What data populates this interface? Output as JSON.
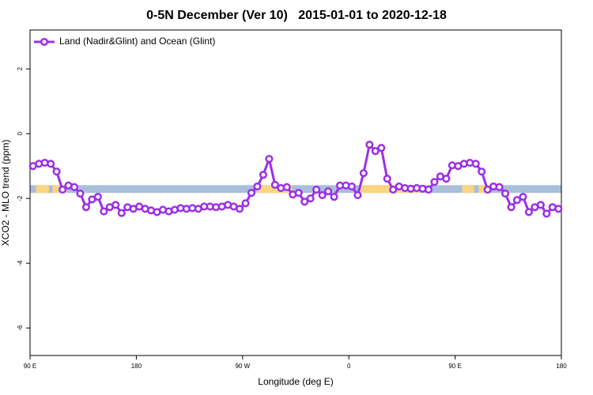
{
  "chart_data": {
    "type": "line",
    "title": "0-5N December (Ver 10)   2015-01-01 to 2020-12-18",
    "xlabel": "Longitude (deg E)",
    "ylabel": "XCO2 - MLO trend (ppm)",
    "xlim": [
      90,
      540
    ],
    "ylim": [
      -6.85,
      3.2
    ],
    "xticks": [
      {
        "value": 90,
        "label": "90 E"
      },
      {
        "value": 180,
        "label": "180"
      },
      {
        "value": 270,
        "label": "90 W"
      },
      {
        "value": 360,
        "label": "0"
      },
      {
        "value": 450,
        "label": "90 E"
      },
      {
        "value": 540,
        "label": "180"
      }
    ],
    "yticks": [
      2,
      0,
      -2,
      -4,
      -6
    ],
    "legend": "top-left",
    "band": [
      -1.83,
      -1.59
    ],
    "band_color": "#a9bedb",
    "highlight_x": [
      [
        95,
        106
      ],
      [
        109,
        121
      ],
      [
        282,
        312
      ],
      [
        369,
        420
      ],
      [
        456,
        466
      ],
      [
        470,
        480
      ]
    ],
    "highlight_color": "#fcd581",
    "x": [
      92.5,
      97.5,
      102.5,
      107.5,
      112.5,
      117.5,
      122.5,
      127.5,
      132.5,
      137.5,
      142.5,
      147.5,
      152.5,
      157.5,
      162.5,
      167.5,
      172.5,
      177.5,
      182.5,
      187.5,
      192.5,
      197.5,
      202.5,
      207.5,
      212.5,
      217.5,
      222.5,
      227.5,
      232.5,
      237.5,
      242.5,
      247.5,
      252.5,
      257.5,
      262.5,
      267.5,
      272.5,
      277.5,
      282.5,
      287.5,
      292.5,
      297.5,
      302.5,
      307.5,
      312.5,
      317.5,
      322.5,
      327.5,
      332.5,
      337.5,
      342.5,
      347.5,
      352.5,
      357.5,
      362.5,
      367.5,
      372.5,
      377.5,
      382.5,
      387.5,
      392.5,
      397.5,
      402.5,
      407.5,
      412.5,
      417.5,
      422.5,
      427.5,
      432.5,
      437.5,
      442.5,
      447.5,
      452.5,
      457.5,
      462.5,
      467.5,
      472.5,
      477.5,
      482.5,
      487.5,
      492.5,
      497.5,
      502.5,
      507.5,
      512.5,
      517.5,
      522.5,
      527.5,
      532.5,
      537.5
    ],
    "series": [
      {
        "name": "Land (Nadir&Glint) and Ocean (Glint)",
        "color": "#9b30e6",
        "values": [
          -1.0,
          -0.93,
          -0.9,
          -0.93,
          -1.17,
          -1.73,
          -1.6,
          -1.65,
          -1.85,
          -2.27,
          -2.03,
          -1.95,
          -2.4,
          -2.27,
          -2.2,
          -2.45,
          -2.27,
          -2.32,
          -2.25,
          -2.32,
          -2.37,
          -2.42,
          -2.35,
          -2.4,
          -2.35,
          -2.3,
          -2.32,
          -2.3,
          -2.32,
          -2.25,
          -2.25,
          -2.27,
          -2.25,
          -2.2,
          -2.25,
          -2.32,
          -2.15,
          -1.83,
          -1.63,
          -1.27,
          -0.78,
          -1.58,
          -1.68,
          -1.65,
          -1.88,
          -1.83,
          -2.1,
          -2.0,
          -1.73,
          -1.9,
          -1.78,
          -1.95,
          -1.6,
          -1.6,
          -1.63,
          -1.9,
          -1.22,
          -0.34,
          -0.54,
          -0.44,
          -1.39,
          -1.73,
          -1.63,
          -1.68,
          -1.7,
          -1.68,
          -1.7,
          -1.73,
          -1.49,
          -1.32,
          -1.39,
          -0.98,
          -1.0,
          -0.93,
          -0.9,
          -0.93,
          -1.17,
          -1.73,
          -1.63,
          -1.65,
          -1.85,
          -2.27,
          -2.05,
          -1.95,
          -2.42,
          -2.27,
          -2.2,
          -2.47,
          -2.27,
          -2.32
        ]
      }
    ]
  }
}
